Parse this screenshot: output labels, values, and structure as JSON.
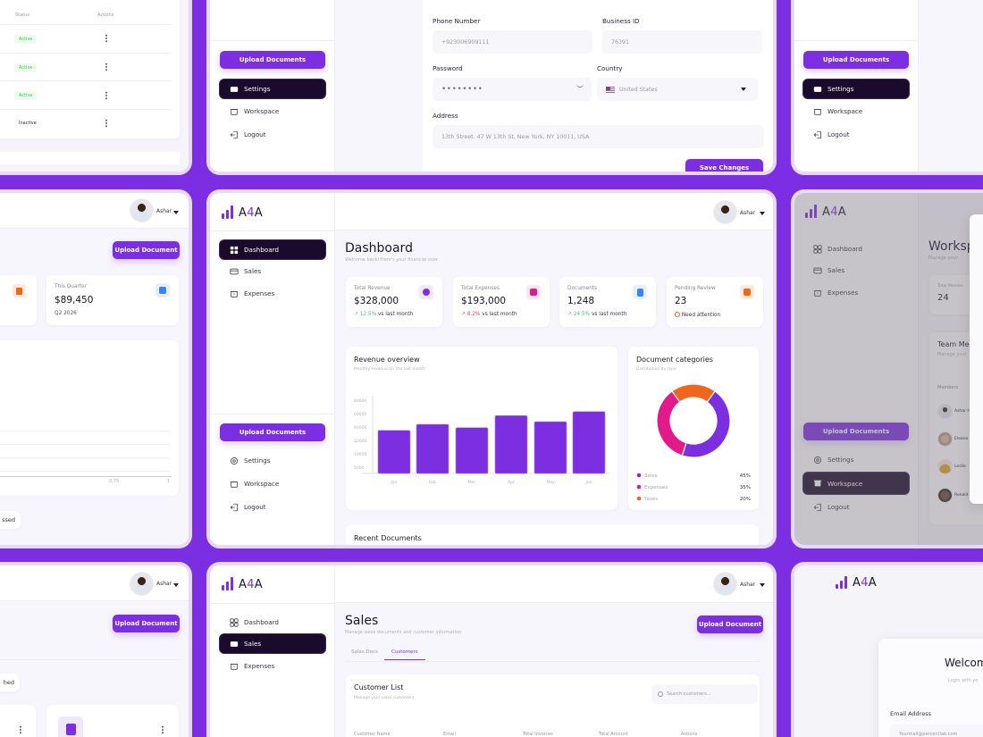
{
  "brand": {
    "name_prefix": "A",
    "name_accent": "4",
    "name_suffix": "A",
    "accent_color": "#7c2fe0",
    "background_color": "#7b2ee2"
  },
  "user": {
    "name": "Ashar"
  },
  "nav": {
    "dashboard": "Dashboard",
    "sales": "Sales",
    "expenses": "Expenses",
    "upload_documents": "Upload Documents",
    "settings": "Settings",
    "workspace": "Workspace",
    "logout": "Logout"
  },
  "upload_document": "Upload Document",
  "team_table": {
    "headers": {
      "status": "Status",
      "actions": "Actions"
    },
    "rows": [
      {
        "status": "Active"
      },
      {
        "status": "Active"
      },
      {
        "status": "Active"
      },
      {
        "status": "Inactive"
      }
    ]
  },
  "settings_form": {
    "phone_label": "Phone Number",
    "phone_value": "+923006909111",
    "business_id_label": "Business ID",
    "business_id_value": "76391",
    "password_label": "Password",
    "password_value": "••••••••",
    "country_label": "Country",
    "country_value": "United States",
    "address_label": "Address",
    "address_value": "13th Street. 47 W 13th St, New York, NY 10011, USA",
    "save_label": "Save Changes"
  },
  "reports_page": {
    "stat": {
      "label": "This Quarter",
      "value": "$89,450",
      "sub": "Q2 2026"
    },
    "axis_ticks": [
      "0.75",
      "1"
    ],
    "pill": "ssed",
    "pill2": "hed"
  },
  "dashboard": {
    "title": "Dashboard",
    "subtitle": "Welcome back! Here's your financial over",
    "stats": [
      {
        "label": "Total Revenue",
        "value": "$328,000",
        "delta": "12.5%",
        "delta_dir": "up",
        "suffix": "vs last month",
        "icon": "dollar-icon",
        "color": "#7c2fe0"
      },
      {
        "label": "Total Expenses",
        "value": "$193,000",
        "delta": "8.2%",
        "delta_dir": "up",
        "suffix": "vs last month",
        "icon": "receipt-icon",
        "color": "#e21a8c"
      },
      {
        "label": "Documents",
        "value": "1,248",
        "delta": "24.5%",
        "delta_dir": "up",
        "suffix": "vs last month",
        "icon": "document-icon",
        "color": "#3b82f6"
      },
      {
        "label": "Pending Review",
        "value": "23",
        "delta": "",
        "suffix": "Need attention",
        "icon": "chart-icon",
        "color": "#f0661a"
      }
    ],
    "revenue_title": "Revenue overview",
    "revenue_subtitle": "Monthly revenue for the last month",
    "categories_title": "Document categories",
    "categories_subtitle": "Distribution by type",
    "recent_title": "Recent Documents"
  },
  "chart_data": [
    {
      "type": "bar",
      "title": "Revenue overview",
      "categories": [
        "Jan",
        "Feb",
        "Mar",
        "Apr",
        "May",
        "Jun"
      ],
      "values": [
        35000,
        44000,
        39000,
        57000,
        48000,
        63000
      ],
      "y_ticks": [
        "80000",
        "60000",
        "40000",
        "20000",
        "10000",
        "5000"
      ],
      "color": "#7c2fe0",
      "grid": false
    },
    {
      "type": "pie",
      "title": "Document categories",
      "categories": [
        "Sales",
        "Expenses",
        "Taxes"
      ],
      "values": [
        45,
        35,
        20
      ],
      "labels": [
        "45%",
        "35%",
        "20%"
      ],
      "colors": [
        "#7c2fe0",
        "#e21a8c",
        "#f0661a"
      ],
      "donut": true
    }
  ],
  "workspace_page": {
    "title": "Worksp",
    "subtitle": "Manage your",
    "total_members_label": "Total Membe",
    "total_members_value": "24",
    "team_title": "Team Me",
    "team_subtitle": "Manage your",
    "members_header": "Members",
    "members": [
      "Ashar H",
      "Eleano",
      "Leslie",
      "Ronald"
    ]
  },
  "sales_page": {
    "title": "Sales",
    "subtitle": "Manage sales documents and customer information",
    "tabs": [
      "Sales Docs",
      "Customers"
    ],
    "list_title": "Customer List",
    "list_subtitle": "Manage your sales customers",
    "search_placeholder": "Search customers...",
    "columns": [
      "Customer Name",
      "Email",
      "Total Invoices",
      "Total Amount",
      "Actions"
    ]
  },
  "login_page": {
    "title": "Welcom",
    "subtitle": "Login with yo",
    "email_label": "Email Address",
    "email_placeholder": "Yourmail@percentlab.com"
  }
}
